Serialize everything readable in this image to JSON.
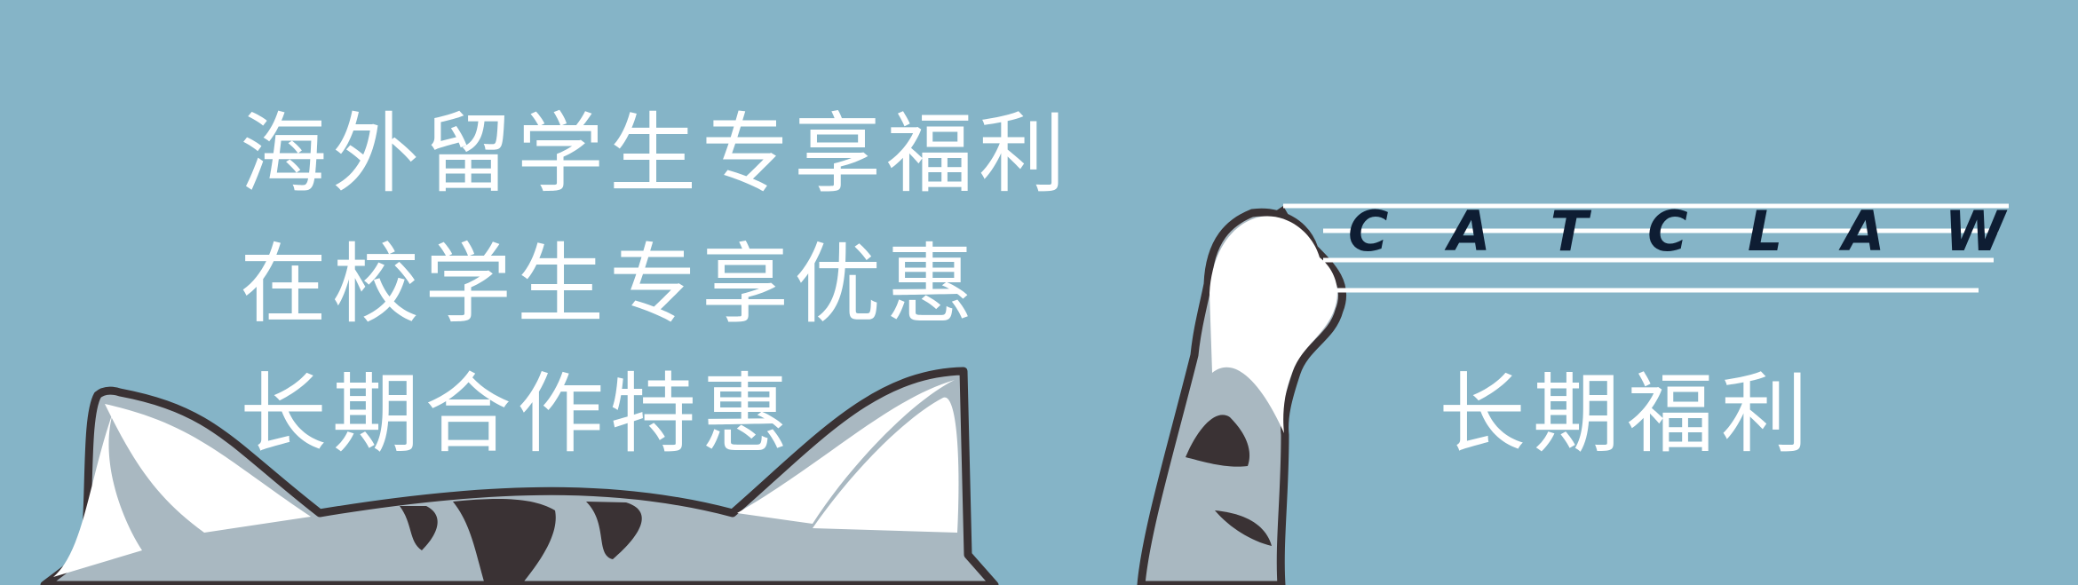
{
  "banner": {
    "headline_lines": [
      "海外留学生专享福利",
      "在校学生专享优惠",
      "长期合作特惠"
    ],
    "subheading": "长期福利",
    "brand_letters": [
      "C",
      "A",
      "T",
      "C",
      "L",
      "A",
      "W"
    ]
  },
  "colors": {
    "background": "#85b4c7",
    "cat_fur": "#a9b8c1",
    "outline": "#3a3234",
    "text": "#ffffff",
    "brand": "#0e1d33"
  }
}
